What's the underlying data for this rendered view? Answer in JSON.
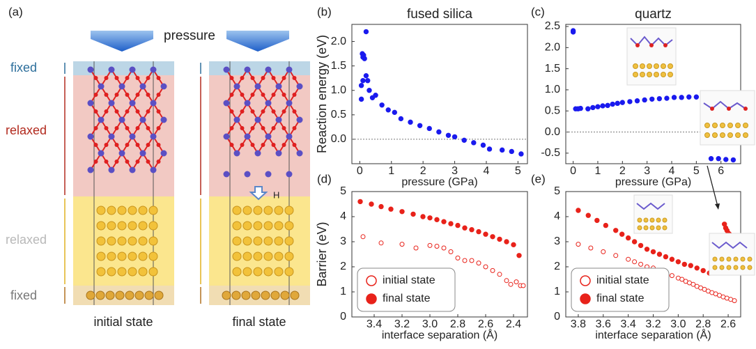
{
  "diagram": {
    "panel": "(a)",
    "arrow_label": "pressure",
    "layers": [
      "fixed",
      "relaxed",
      "relaxed",
      "fixed"
    ],
    "captions": [
      "initial state",
      "final state"
    ],
    "h_label": "H"
  },
  "chart_data": [
    {
      "type": "scatter",
      "panel": "(b)",
      "title": "fused silica",
      "xlabel": "pressure (GPa)",
      "ylabel": "Reaction energy (eV)",
      "xlim": [
        -0.25,
        5.3
      ],
      "ylim": [
        -0.5,
        2.35
      ],
      "xticks": [
        0,
        1,
        2,
        3,
        4,
        5
      ],
      "yticks": [
        {
          "value": 0,
          "label": "0.0"
        },
        {
          "value": 0.5,
          "label": "0.5"
        },
        {
          "value": 1,
          "label": "1.0"
        },
        {
          "value": 1.5,
          "label": "1.5"
        },
        {
          "value": 2,
          "label": "2.0"
        }
      ],
      "hlines": [
        0
      ],
      "series": [
        {
          "color": "#1a1aee",
          "filled": true,
          "x": [
            0.05,
            0.05,
            0.1,
            0.1,
            0.08,
            0.12,
            0.15,
            0.2,
            0.2,
            0.25,
            0.3,
            0.4,
            0.5,
            0.7,
            0.9,
            1.1,
            1.3,
            1.6,
            1.9,
            2.2,
            2.5,
            2.8,
            3.0,
            3.3,
            3.6,
            3.9,
            4.1,
            4.5,
            4.8,
            5.1
          ],
          "values": [
            0.82,
            1.1,
            1.2,
            1.68,
            1.75,
            1.72,
            1.65,
            2.2,
            1.3,
            1.2,
            1.0,
            0.85,
            0.9,
            0.7,
            0.6,
            0.55,
            0.42,
            0.35,
            0.28,
            0.22,
            0.15,
            0.08,
            0.05,
            -0.02,
            -0.07,
            -0.12,
            -0.2,
            -0.22,
            -0.25,
            -0.3
          ]
        }
      ]
    },
    {
      "type": "scatter",
      "panel": "(c)",
      "title": "quartz",
      "xlabel": "pressure (GPa)",
      "xlim": [
        -0.3,
        6.8
      ],
      "ylim": [
        -0.75,
        2.55
      ],
      "xticks": [
        0,
        1,
        2,
        3,
        4,
        5,
        6
      ],
      "yticks": [
        {
          "value": -0.5,
          "label": "-0.5"
        },
        {
          "value": 0,
          "label": "0.0"
        },
        {
          "value": 0.5,
          "label": "0.5"
        },
        {
          "value": 1,
          "label": "1.0"
        },
        {
          "value": 1.5,
          "label": "1.5"
        },
        {
          "value": 2,
          "label": "2.0"
        },
        {
          "value": 2.5,
          "label": "2.5"
        }
      ],
      "hlines": [
        0
      ],
      "series": [
        {
          "color": "#1a1aee",
          "filled": true,
          "x": [
            0,
            0,
            0.1,
            0.2,
            0.3,
            0.6,
            0.8,
            1.0,
            1.2,
            1.4,
            1.6,
            1.8,
            2.0,
            2.3,
            2.6,
            2.9,
            3.2,
            3.5,
            3.8,
            4.1,
            4.4,
            4.7,
            5.0,
            5.6,
            5.9,
            6.2,
            6.5
          ],
          "values": [
            2.37,
            2.4,
            0.55,
            0.55,
            0.56,
            0.55,
            0.58,
            0.6,
            0.62,
            0.63,
            0.66,
            0.68,
            0.7,
            0.72,
            0.74,
            0.76,
            0.78,
            0.79,
            0.8,
            0.82,
            0.82,
            0.83,
            0.83,
            -0.63,
            -0.63,
            -0.65,
            -0.66
          ]
        }
      ]
    },
    {
      "type": "scatter",
      "panel": "(d)",
      "xlabel": "interface separation (Å)",
      "ylabel": "Barrier (eV)",
      "xlim": [
        3.56,
        2.3
      ],
      "ylim": [
        0,
        5
      ],
      "xticks": [
        3.4,
        3.2,
        {
          "value": 3,
          "label": "3.0"
        },
        2.8,
        2.6,
        2.4
      ],
      "yticks": [
        0,
        1,
        2,
        3,
        4,
        5
      ],
      "legend": "lower left",
      "series": [
        {
          "name": "initial state",
          "color": "#e8221a",
          "filled": false,
          "x": [
            3.48,
            3.35,
            3.2,
            3.1,
            3.0,
            2.95,
            2.9,
            2.85,
            2.8,
            2.75,
            2.7,
            2.65,
            2.6,
            2.55,
            2.5,
            2.45,
            2.42,
            2.38,
            2.35,
            2.33
          ],
          "values": [
            3.2,
            2.95,
            2.9,
            2.75,
            2.85,
            2.82,
            2.75,
            2.6,
            2.35,
            2.25,
            2.25,
            2.15,
            2.0,
            1.85,
            1.7,
            1.45,
            1.3,
            1.4,
            1.25,
            1.25
          ]
        },
        {
          "name": "final state",
          "color": "#e8221a",
          "filled": true,
          "x": [
            3.5,
            3.42,
            3.35,
            3.28,
            3.2,
            3.12,
            3.05,
            3.0,
            2.95,
            2.9,
            2.85,
            2.8,
            2.75,
            2.7,
            2.65,
            2.6,
            2.55,
            2.5,
            2.45,
            2.4,
            2.36
          ],
          "values": [
            4.6,
            4.5,
            4.4,
            4.3,
            4.2,
            4.1,
            4.0,
            3.95,
            3.88,
            3.8,
            3.72,
            3.65,
            3.55,
            3.48,
            3.4,
            3.3,
            3.2,
            3.1,
            3.0,
            2.88,
            2.45
          ]
        }
      ]
    },
    {
      "type": "scatter",
      "panel": "(e)",
      "xlabel": "interface separation (Å)",
      "xlim": [
        3.9,
        2.5
      ],
      "ylim": [
        0,
        5
      ],
      "xticks": [
        3.8,
        3.6,
        3.4,
        3.2,
        {
          "value": 3,
          "label": "3.0"
        },
        2.8,
        2.6
      ],
      "yticks": [
        0,
        1,
        2,
        3,
        4,
        5
      ],
      "legend": "lower left",
      "series": [
        {
          "name": "initial state",
          "color": "#e8221a",
          "filled": false,
          "x": [
            3.8,
            3.7,
            3.6,
            3.5,
            3.4,
            3.35,
            3.3,
            3.25,
            3.2,
            3.15,
            3.1,
            3.05,
            3.0,
            2.97,
            2.94,
            2.91,
            2.88,
            2.85,
            2.82,
            2.79,
            2.76,
            2.73,
            2.7,
            2.67,
            2.64,
            2.61,
            2.58,
            2.55
          ],
          "values": [
            2.9,
            2.75,
            2.6,
            2.45,
            2.3,
            2.2,
            2.1,
            2.0,
            1.95,
            1.85,
            1.75,
            1.65,
            1.55,
            1.5,
            1.42,
            1.36,
            1.3,
            1.22,
            1.16,
            1.1,
            1.03,
            0.97,
            0.92,
            0.86,
            0.8,
            0.75,
            0.7,
            0.65
          ]
        },
        {
          "name": "final state",
          "color": "#e8221a",
          "filled": true,
          "x": [
            3.8,
            3.72,
            3.65,
            3.58,
            3.5,
            3.45,
            3.4,
            3.35,
            3.3,
            3.25,
            3.2,
            3.15,
            3.1,
            3.05,
            3.0,
            2.95,
            2.9,
            2.85,
            2.8,
            2.75,
            2.63,
            2.62,
            2.61,
            2.6,
            2.59
          ],
          "values": [
            4.25,
            4.05,
            3.85,
            3.65,
            3.45,
            3.3,
            3.15,
            3.0,
            2.85,
            2.7,
            2.6,
            2.5,
            2.4,
            2.3,
            2.2,
            2.1,
            2.05,
            1.95,
            1.85,
            1.75,
            3.7,
            3.55,
            3.45,
            3.35,
            3.3
          ]
        }
      ]
    }
  ]
}
